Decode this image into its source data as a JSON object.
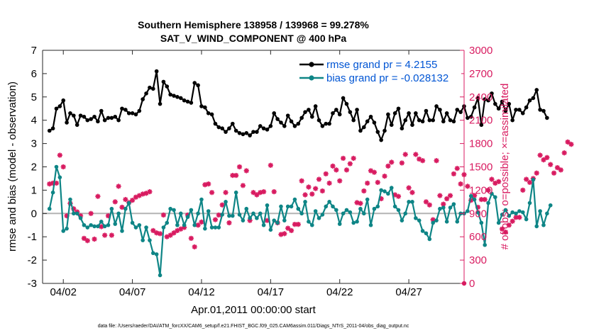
{
  "figure": {
    "title_line1": "Southern Hemisphere 138958 / 139968 = 99.278%",
    "title_line2": "SAT_V_WIND_COMPONENT @ 400 hPa",
    "footer": "data file: /Users/raeder/DAI/ATM_forcXX/CAM6_setup/f.e21.FHIST_BGC.f09_025.CAM6assim.011/Diags_NTrS_2011-04/obs_diag_output.nc"
  },
  "colors": {
    "rmse": "#000000",
    "bias": "#0e8586",
    "obs": "#d81b60",
    "zero_line": "#b4b4b4",
    "legend_text": "#0055d4",
    "right_axis": "#d81b60"
  },
  "chart_data": {
    "type": "line",
    "title": "Southern Hemisphere 138958 / 139968 = 99.278%",
    "subtitle": "SAT_V_WIND_COMPONENT @ 400 hPa",
    "xlabel": "Apr.01,2011 00:00:00 start",
    "ylabel": "rmse and bias (model - observation)",
    "ylabel_right": "# of obs: o=possible; ×=assimilated",
    "xlim": [
      0.5,
      31.0
    ],
    "ylim": [
      -3,
      7
    ],
    "ylim_right": [
      0,
      3000
    ],
    "x_ticks": [
      2,
      7,
      12,
      17,
      22,
      27
    ],
    "x_ticklabels": [
      "04/02",
      "04/07",
      "04/12",
      "04/17",
      "04/22",
      "04/27"
    ],
    "y_ticks": [
      -3,
      -2,
      -1,
      0,
      1,
      2,
      3,
      4,
      5,
      6,
      7
    ],
    "y_ticklabels": [
      "-3",
      "-2",
      "-1",
      "0",
      "1",
      "2",
      "3",
      "4",
      "5",
      "6",
      "7"
    ],
    "y2_ticks": [
      0,
      300,
      600,
      900,
      1200,
      1500,
      1800,
      2100,
      2400,
      2700,
      3000
    ],
    "y2_ticklabels": [
      "0",
      "300",
      "600",
      "900",
      "1200",
      "1500",
      "1800",
      "2100",
      "2400",
      "2700",
      "3000"
    ],
    "legend_position": "top-right",
    "x_start": 1.0,
    "x_step": 0.25,
    "series": [
      {
        "name": "rmse grand pr = 4.2155",
        "axis": "left",
        "values": [
          3.55,
          3.65,
          4.5,
          4.6,
          4.85,
          3.9,
          4.3,
          4.2,
          3.8,
          4.2,
          4.15,
          4.0,
          4.05,
          4.15,
          3.95,
          4.4,
          4.0,
          4.1,
          4.1,
          4.15,
          4.0,
          4.5,
          4.45,
          4.3,
          4.3,
          4.25,
          4.4,
          4.9,
          5.15,
          5.4,
          5.35,
          6.1,
          4.7,
          5.65,
          5.45,
          5.1,
          5.05,
          5.0,
          4.95,
          4.85,
          4.8,
          4.75,
          5.6,
          5.5,
          4.6,
          4.55,
          4.3,
          4.25,
          3.85,
          3.7,
          3.65,
          3.5,
          3.65,
          3.85,
          3.55,
          3.45,
          3.4,
          3.45,
          3.35,
          3.5,
          3.5,
          3.75,
          3.65,
          3.6,
          3.75,
          4.3,
          4.05,
          3.9,
          3.75,
          4.2,
          3.95,
          3.75,
          3.85,
          4.1,
          4.35,
          4.45,
          4.15,
          4.6,
          4.0,
          3.75,
          3.85,
          3.85,
          4.3,
          4.45,
          4.25,
          4.95,
          4.7,
          4.35,
          4.0,
          4.45,
          3.55,
          3.7,
          3.95,
          4.15,
          3.9,
          3.5,
          3.15,
          3.55,
          4.25,
          3.8,
          4.3,
          4.5,
          3.65,
          4.0,
          4.3,
          3.8,
          4.3,
          4.0,
          3.95,
          4.4,
          4.0,
          4.0,
          4.6,
          4.45,
          3.95,
          4.3,
          4.0,
          3.95,
          4.45,
          4.35,
          4.6,
          4.1,
          4.15,
          4.55,
          4.95,
          3.8,
          4.9,
          4.85,
          5.15,
          4.7,
          4.5,
          4.8,
          4.4,
          4.7,
          4.0,
          4.45,
          4.45,
          4.3,
          4.55,
          4.85,
          4.95,
          5.3,
          4.45,
          4.4,
          4.1
        ]
      },
      {
        "name": "bias grand pr = -0.028132",
        "axis": "left",
        "values": [
          0.2,
          0.9,
          2.0,
          1.55,
          -0.75,
          -0.65,
          0.6,
          0.0,
          0.0,
          -0.2,
          -0.5,
          -0.6,
          -0.5,
          -0.55,
          -0.55,
          -0.35,
          -0.55,
          -0.5,
          0.2,
          -0.45,
          0.0,
          -0.75,
          0.2,
          0.45,
          -0.4,
          -0.6,
          -0.5,
          -1.15,
          -0.6,
          -1.15,
          -1.7,
          -1.75,
          -2.65,
          -0.6,
          -0.4,
          0.2,
          0.15,
          -0.5,
          0.0,
          -0.5,
          -0.15,
          0.15,
          -0.5,
          0.0,
          0.6,
          -0.65,
          0.1,
          -0.6,
          -0.6,
          -0.6,
          -0.05,
          0.5,
          -0.1,
          -0.1,
          0.9,
          -0.05,
          -0.3,
          0.2,
          -0.2,
          0.0,
          -0.2,
          0.0,
          -0.5,
          0.35,
          -0.7,
          -0.3,
          -0.4,
          0.3,
          -0.3,
          0.3,
          0.3,
          0.6,
          0.2,
          0.0,
          0.5,
          -0.35,
          -0.5,
          0.1,
          -0.2,
          -0.05,
          0.3,
          0.5,
          0.3,
          0.15,
          -0.45,
          0.0,
          0.15,
          0.05,
          -0.4,
          -0.35,
          0.2,
          0.0,
          0.6,
          -0.5,
          0.2,
          0.3,
          1.0,
          0.95,
          0.85,
          1.1,
          0.3,
          0.15,
          -0.3,
          0.0,
          0.5,
          0.5,
          -0.2,
          -0.3,
          -0.75,
          -0.85,
          -1.1,
          -0.4,
          -0.3,
          0.2,
          0.25,
          -0.35,
          0.25,
          0.4,
          -0.35,
          0.0,
          0.0,
          0.1,
          0.75,
          0.6,
          0.05,
          -0.4,
          -1.35,
          0.45,
          0.85,
          0.7,
          -0.4,
          -0.05,
          0.15,
          -0.1,
          0.05,
          0.0,
          0.1,
          0.05,
          -0.25,
          0.45,
          1.45,
          -0.55,
          0.1,
          -0.5,
          0.0,
          0.35
        ]
      },
      {
        "name": "obs assimilated",
        "axis": "right",
        "values": [
          1280,
          1290,
          1290,
          1650,
          1500,
          870,
          1030,
          960,
          920,
          870,
          580,
          550,
          900,
          570,
          1120,
          730,
          620,
          870,
          620,
          1050,
          1250,
          980,
          1080,
          1040,
          1070,
          1110,
          1130,
          1150,
          1160,
          1180,
          680,
          650,
          640,
          880,
          600,
          620,
          650,
          680,
          700,
          720,
          880,
          580,
          470,
          750,
          790,
          1270,
          1280,
          1170,
          820,
          880,
          1010,
          1170,
          780,
          1390,
          1390,
          1500,
          1260,
          1450,
          810,
          1170,
          1140,
          1170,
          1180,
          810,
          1520,
          1180,
          780,
          630,
          640,
          710,
          680,
          760,
          760,
          1320,
          1140,
          1240,
          1150,
          1220,
          1340,
          1190,
          1410,
          1290,
          1510,
          1460,
          1320,
          1610,
          1460,
          1540,
          1610,
          1040,
          1030,
          1190,
          1290,
          1450,
          1430,
          1300,
          1090,
          1380,
          1510,
          1560,
          1140,
          1120,
          1550,
          1660,
          1230,
          1170,
          1660,
          1600,
          1580,
          1050,
          1010,
          820,
          1580,
          1130,
          1020,
          1090,
          1130,
          1410,
          1480,
          1280,
          1400,
          1250,
          1070,
          1130,
          980,
          1080,
          1080,
          1200,
          1340,
          1290,
          1310,
          700,
          660,
          750,
          800,
          850,
          850,
          1200,
          1340,
          1300,
          1350,
          1420,
          1650,
          1590,
          1620,
          1530,
          1420,
          1490,
          1460,
          1680,
          1820,
          1790
        ]
      }
    ],
    "obs_possible_last": 0
  }
}
